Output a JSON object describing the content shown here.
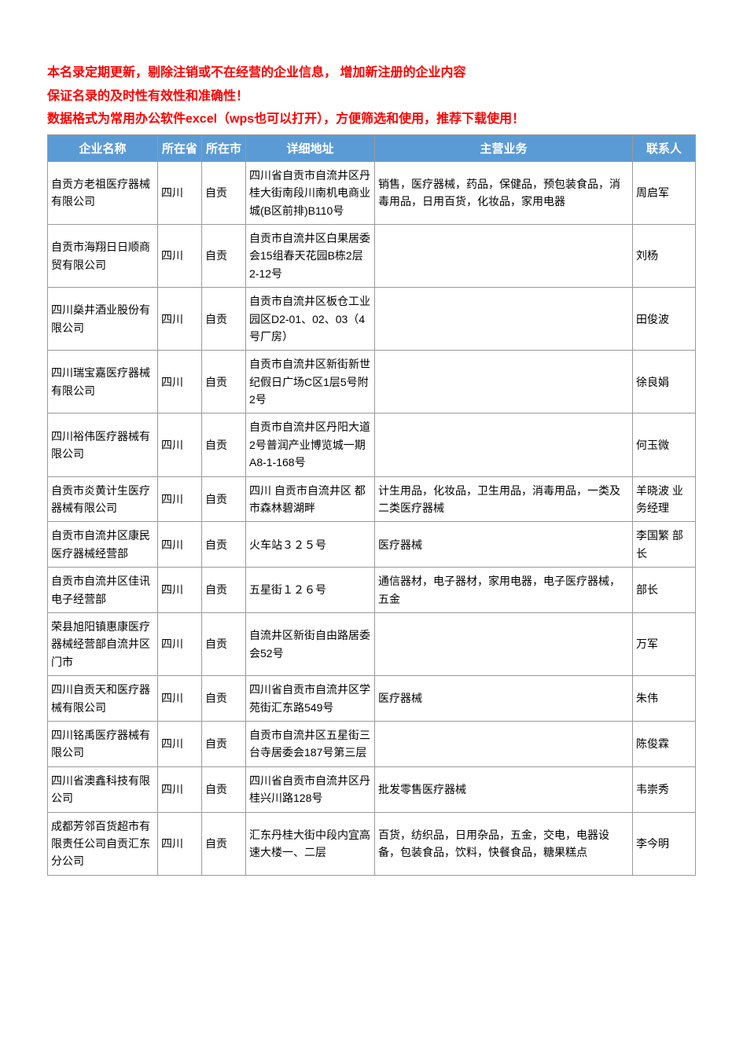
{
  "header": {
    "line1": "本名录定期更新，剔除注销或不在经营的企业信息， 增加新注册的企业内容",
    "line2": "保证名录的及时性有效性和准确性！",
    "line3": "数据格式为常用办公软件excel（wps也可以打开），方便筛选和使用，推荐下载使用！"
  },
  "table": {
    "columns": [
      "企业名称",
      "所在省",
      "所在市",
      "详细地址",
      "主营业务",
      "联系人"
    ],
    "header_bg": "#5b9bd5",
    "header_fg": "#ffffff",
    "border_color": "#999999",
    "rows": [
      {
        "name": "自贡方老祖医疗器械有限公司",
        "province": "四川",
        "city": "自贡",
        "address": "四川省自贡市自流井区丹桂大街南段川南机电商业城(B区前排)B110号",
        "business": "销售，医疗器械，药品，保健品，预包装食品，消毒用品，日用百货，化妆品，家用电器",
        "contact": "周启军"
      },
      {
        "name": "自贡市海翔日日顺商贸有限公司",
        "province": "四川",
        "city": "自贡",
        "address": "自贡市自流井区白果居委会15组春天花园B栋2层2-12号",
        "business": "",
        "contact": "刘杨"
      },
      {
        "name": "四川燊井酒业股份有限公司",
        "province": "四川",
        "city": "自贡",
        "address": "自贡市自流井区板仓工业园区D2-01、02、03（4号厂房）",
        "business": "",
        "contact": "田俊波"
      },
      {
        "name": "四川瑞宝嘉医疗器械有限公司",
        "province": "四川",
        "city": "自贡",
        "address": "自贡市自流井区新街新世纪假日广场C区1层5号附2号",
        "business": "",
        "contact": "徐良娟"
      },
      {
        "name": "四川裕伟医疗器械有限公司",
        "province": "四川",
        "city": "自贡",
        "address": "自贡市自流井区丹阳大道2号普润产业博览城一期A8-1-168号",
        "business": "",
        "contact": "何玉微"
      },
      {
        "name": "自贡市炎黄计生医疗器械有限公司",
        "province": "四川",
        "city": "自贡",
        "address": "四川 自贡市自流井区 都市森林碧湖畔",
        "business": "计生用品，化妆品，卫生用品，消毒用品，一类及二类医疗器械",
        "contact": "羊晓波 业务经理"
      },
      {
        "name": "自贡市自流井区康民医疗器械经营部",
        "province": "四川",
        "city": "自贡",
        "address": "火车站３２５号",
        "business": "医疗器械",
        "contact": "李国繁 部长"
      },
      {
        "name": "自贡市自流井区佳讯电子经营部",
        "province": "四川",
        "city": "自贡",
        "address": "五星街１２６号",
        "business": "通信器材，电子器材，家用电器，电子医疗器械，五金",
        "contact": "部长"
      },
      {
        "name": "荣县旭阳镇惠康医疗器械经营部自流井区门市",
        "province": "四川",
        "city": "自贡",
        "address": "自流井区新街自由路居委会52号",
        "business": "",
        "contact": "万军"
      },
      {
        "name": "四川自贡天和医疗器械有限公司",
        "province": "四川",
        "city": "自贡",
        "address": "四川省自贡市自流井区学苑街汇东路549号",
        "business": "医疗器械",
        "contact": "朱伟"
      },
      {
        "name": "四川铭禹医疗器械有限公司",
        "province": "四川",
        "city": "自贡",
        "address": "自贡市自流井区五星街三台寺居委会187号第三层",
        "business": "",
        "contact": "陈俊霖"
      },
      {
        "name": "四川省澳鑫科技有限公司",
        "province": "四川",
        "city": "自贡",
        "address": "四川省自贡市自流井区丹桂兴川路128号",
        "business": "批发零售医疗器械",
        "contact": "韦崇秀"
      },
      {
        "name": "成都芳邻百货超市有限责任公司自贡汇东分公司",
        "province": "四川",
        "city": "自贡",
        "address": "汇东丹桂大街中段内宜高速大楼一、二层",
        "business": "百货，纺织品，日用杂品，五金，交电，电器设备，包装食品，饮料，快餐食品，糖果糕点",
        "contact": "李今明"
      }
    ]
  }
}
